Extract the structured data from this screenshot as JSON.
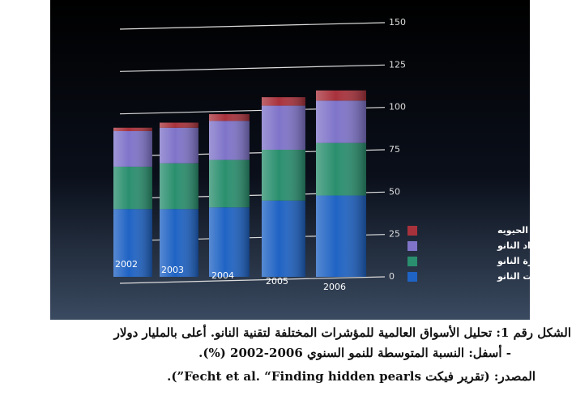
{
  "chart_data": {
    "type": "bar",
    "stacked": true,
    "categories": [
      "2002",
      "2003",
      "2004",
      "2005",
      "2006"
    ],
    "series": [
      {
        "name": "معدات النانو",
        "color": "#1f63c4",
        "values": [
          40,
          40,
          41,
          45,
          48
        ]
      },
      {
        "name": "أجهزة النانو",
        "color": "#2a8f6e",
        "values": [
          25,
          27,
          28,
          30,
          31
        ]
      },
      {
        "name": "مواد النانو",
        "color": "#7f74c9",
        "values": [
          21,
          21,
          23,
          26,
          25
        ]
      },
      {
        "name": "تقنية النانو الحيويه",
        "color": "#a8323c",
        "values": [
          2,
          3,
          4,
          5,
          6
        ]
      }
    ],
    "ylim": [
      0,
      150
    ],
    "yticks": [
      0,
      25,
      50,
      75,
      100,
      125,
      150
    ],
    "grid": true
  },
  "caption": [
    "الشكل رقم 1: تحليل الأسواق العالمية للمؤشرات المختلفة لتقنية النانو. أعلى بالمليار دولار",
    "- أسفل: النسبة المتوسطة للنمو السنوي 2006-2002 (%).",
    "المصدر: (تقرير فيكت Fecht et al. “Finding hidden pearls”)."
  ]
}
